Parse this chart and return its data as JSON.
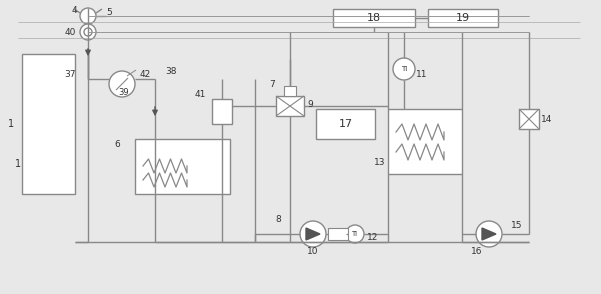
{
  "bg_color": "#e8e8e8",
  "line_color": "#888888",
  "dark_color": "#555555",
  "lw": 1.0,
  "fig_w": 6.01,
  "fig_h": 2.94,
  "dpi": 100
}
